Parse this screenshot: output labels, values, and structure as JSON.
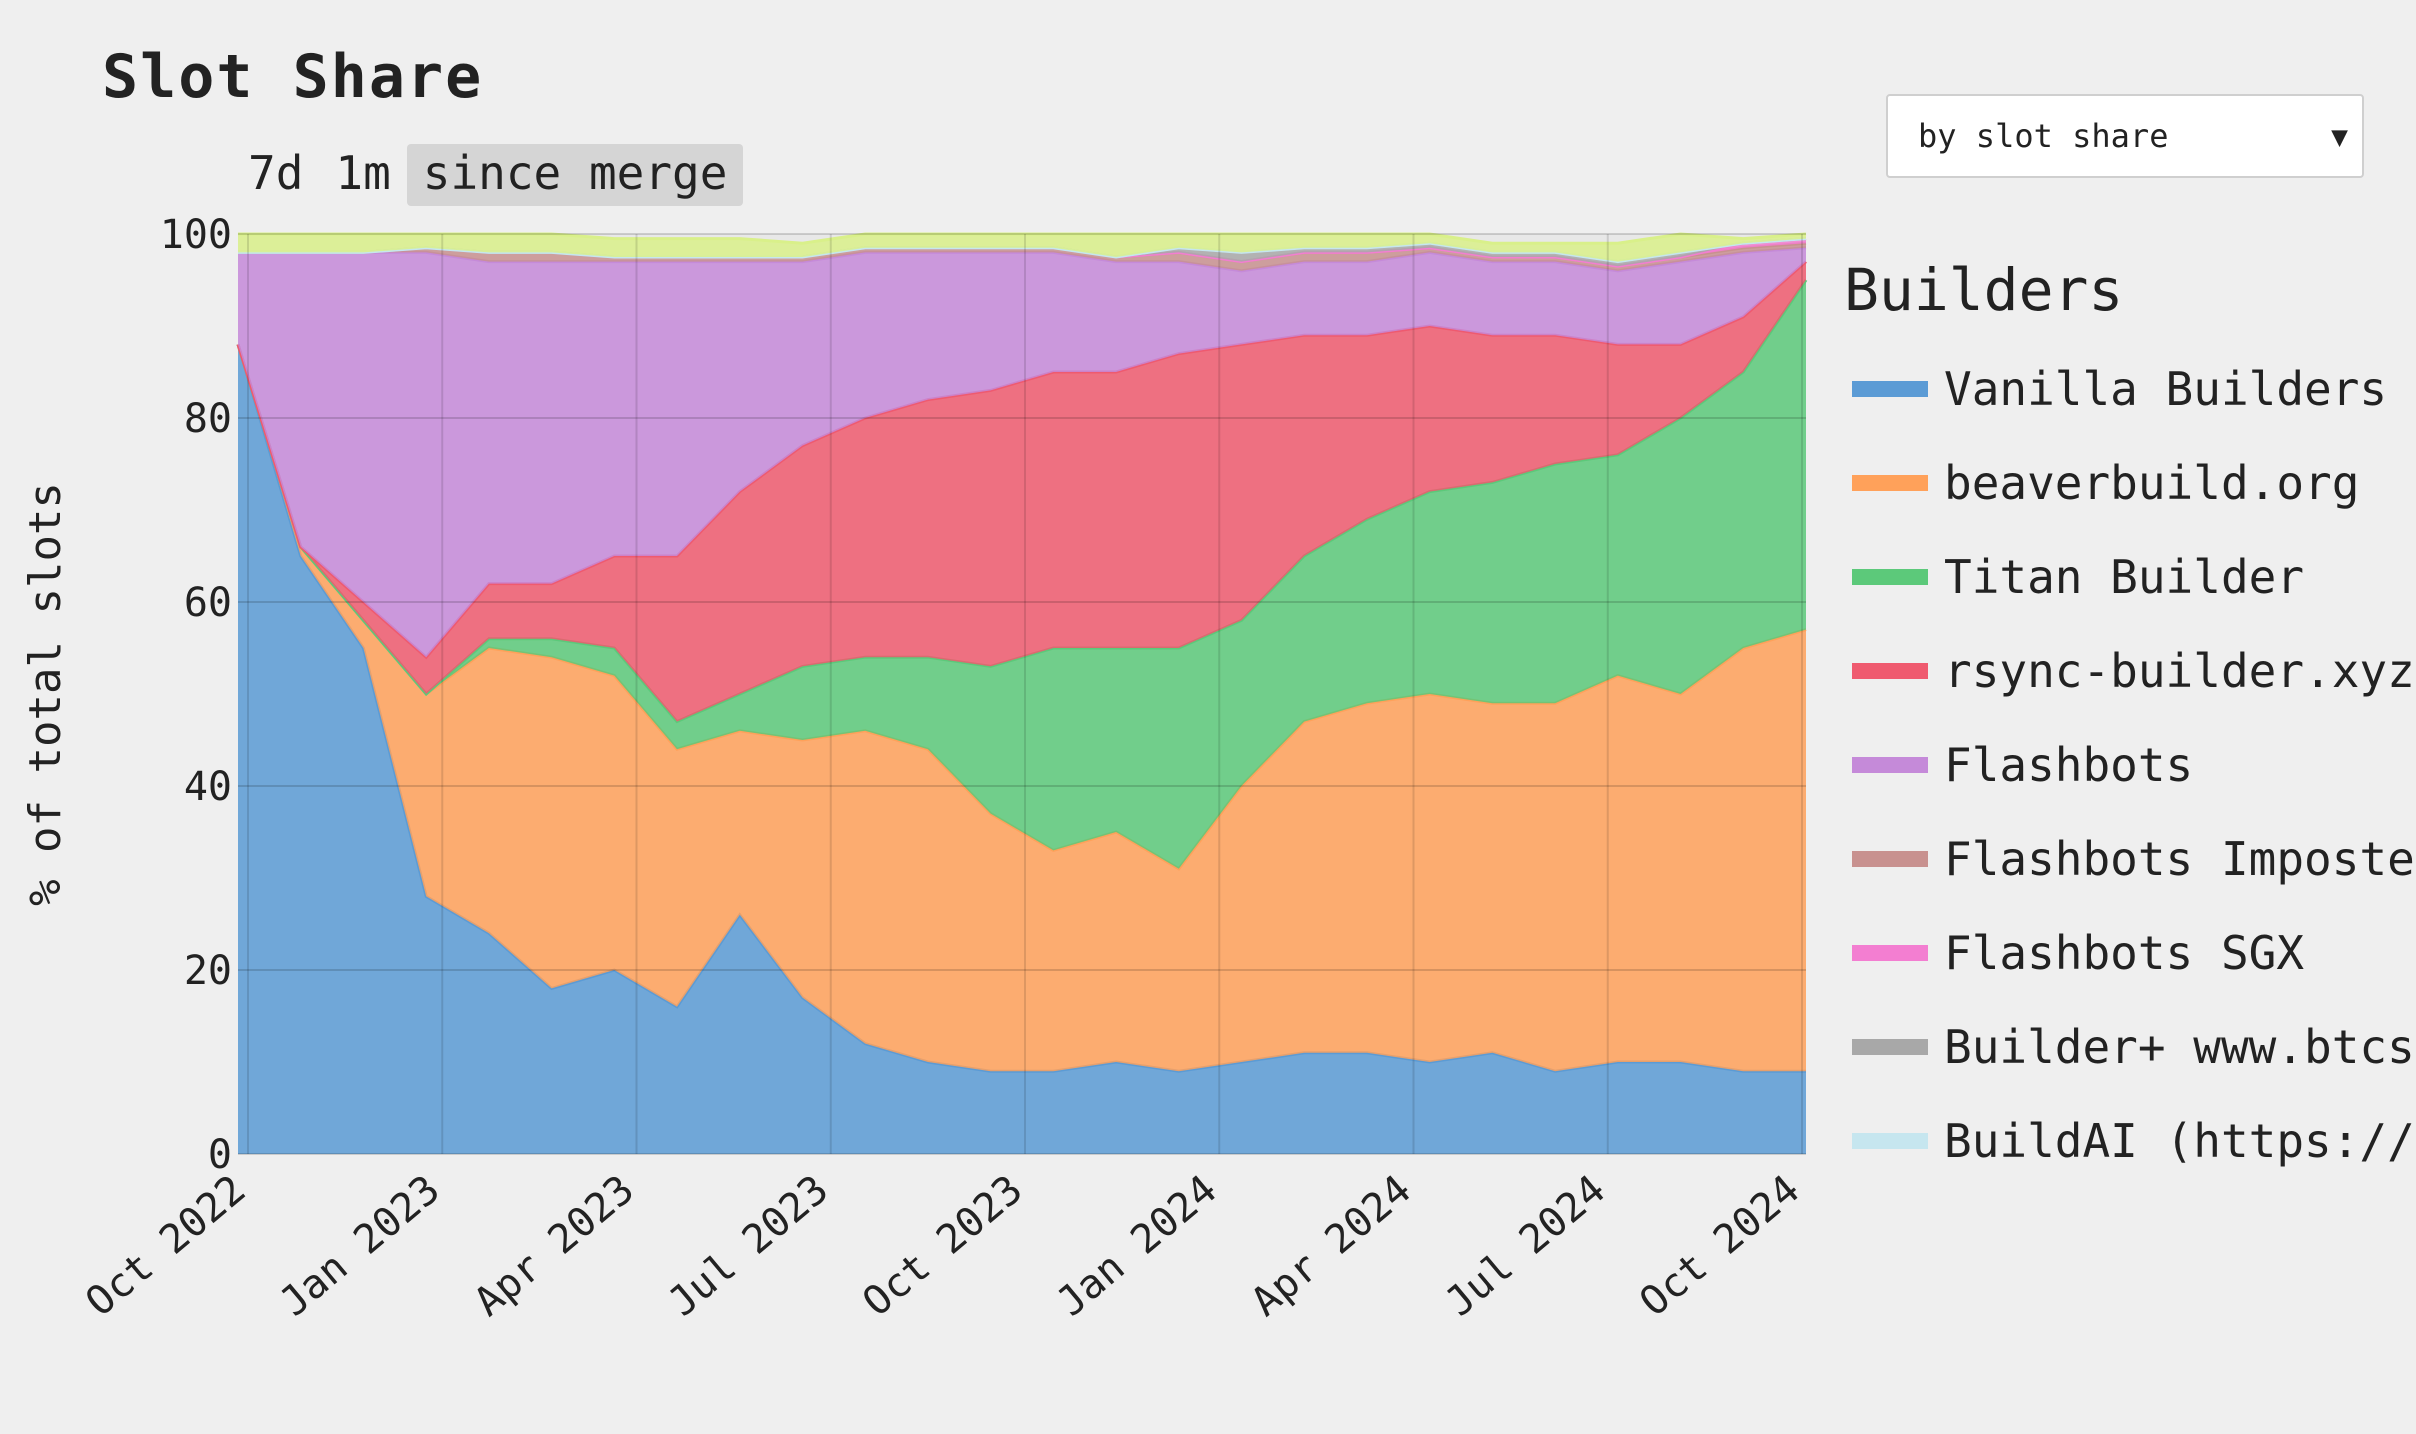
{
  "title": "Slot Share",
  "range_tabs": [
    {
      "label": "7d",
      "active": false
    },
    {
      "label": "1m",
      "active": false
    },
    {
      "label": "since merge",
      "active": true
    }
  ],
  "sort_select": {
    "value": "by slot share"
  },
  "legend": {
    "title": "Builders",
    "items": [
      {
        "label": "Vanilla Builders",
        "color": "#5b9bd5"
      },
      {
        "label": "beaverbuild.org",
        "color": "#ffa15a"
      },
      {
        "label": "Titan Builder",
        "color": "#5cc97a"
      },
      {
        "label": "rsync-builder.xyz",
        "color": "#ef5a6f"
      },
      {
        "label": "Flashbots",
        "color": "#c58ad9"
      },
      {
        "label": "Flashbots Imposte",
        "color": "#c8918f"
      },
      {
        "label": "Flashbots SGX",
        "color": "#f37ed1"
      },
      {
        "label": "Builder+ www.btcs",
        "color": "#a8a8a8"
      },
      {
        "label": "BuildAI (https://",
        "color": "#c6e6ef"
      }
    ]
  },
  "chart_data": {
    "type": "area",
    "title": "Slot Share",
    "ylabel": "% of total slots",
    "xlabel": "",
    "ylim": [
      0,
      100
    ],
    "yticks": [
      0,
      20,
      40,
      60,
      80,
      100
    ],
    "xticks": [
      "Oct 2022",
      "Jan 2023",
      "Apr 2023",
      "Jul 2023",
      "Oct 2023",
      "Jan 2024",
      "Apr 2024",
      "Jul 2024",
      "Oct 2024"
    ],
    "x": [
      "Sep 2022",
      "Oct 2022",
      "Nov 2022",
      "Dec 2022",
      "Jan 2023",
      "Feb 2023",
      "Mar 2023",
      "Apr 2023",
      "May 2023",
      "Jun 2023",
      "Jul 2023",
      "Aug 2023",
      "Sep 2023",
      "Oct 2023",
      "Nov 2023",
      "Dec 2023",
      "Jan 2024",
      "Feb 2024",
      "Mar 2024",
      "Apr 2024",
      "May 2024",
      "Jun 2024",
      "Jul 2024",
      "Aug 2024",
      "Sep 2024",
      "Oct 2024"
    ],
    "stacked": true,
    "grid": true,
    "legend_position": "right",
    "series": [
      {
        "name": "Vanilla Builders",
        "color": "#5b9bd5",
        "values": [
          88,
          65,
          55,
          28,
          24,
          18,
          20,
          16,
          26,
          17,
          12,
          10,
          9,
          9,
          10,
          9,
          10,
          11,
          11,
          10,
          11,
          9,
          10,
          10,
          9,
          9
        ]
      },
      {
        "name": "beaverbuild.org",
        "color": "#ffa15a",
        "values": [
          0,
          1,
          3,
          22,
          31,
          36,
          32,
          28,
          20,
          28,
          34,
          34,
          28,
          24,
          25,
          22,
          30,
          36,
          38,
          40,
          38,
          40,
          42,
          40,
          46,
          48
        ]
      },
      {
        "name": "Titan Builder",
        "color": "#5cc97a",
        "values": [
          0,
          0,
          0,
          0,
          1,
          2,
          3,
          3,
          4,
          8,
          8,
          10,
          16,
          22,
          20,
          24,
          18,
          18,
          20,
          22,
          24,
          26,
          24,
          30,
          30,
          38
        ]
      },
      {
        "name": "rsync-builder.xyz",
        "color": "#ef5a6f",
        "values": [
          0,
          0,
          2,
          4,
          6,
          6,
          10,
          18,
          22,
          24,
          26,
          28,
          30,
          30,
          30,
          32,
          30,
          24,
          20,
          18,
          16,
          14,
          12,
          8,
          6,
          2
        ]
      },
      {
        "name": "Flashbots",
        "color": "#c58ad9",
        "values": [
          10,
          32,
          38,
          44,
          35,
          35,
          32,
          32,
          25,
          20,
          18,
          16,
          15,
          13,
          12,
          10,
          8,
          8,
          8,
          8,
          8,
          8,
          8,
          9,
          7,
          1.5
        ]
      },
      {
        "name": "Flashbots Imposte",
        "color": "#c8918f",
        "values": [
          0,
          0,
          0,
          0.5,
          1,
          1,
          0.5,
          0.5,
          0.5,
          0.5,
          0.5,
          0.5,
          0.5,
          0.5,
          0.5,
          1,
          1,
          1,
          1,
          0.5,
          0.5,
          0.5,
          0.5,
          0.5,
          0.5,
          0.5
        ]
      },
      {
        "name": "Flashbots SGX",
        "color": "#f37ed1",
        "values": [
          0,
          0,
          0,
          0,
          0,
          0,
          0,
          0,
          0,
          0,
          0,
          0,
          0,
          0,
          0,
          0,
          0,
          0,
          0,
          0,
          0,
          0,
          0,
          0,
          0.5,
          0.5
        ]
      },
      {
        "name": "Builder+ www.btcs",
        "color": "#a8a8a8",
        "values": [
          0,
          0,
          0,
          0,
          0,
          0,
          0,
          0,
          0,
          0,
          0,
          0,
          0,
          0,
          0,
          0.5,
          1,
          0.5,
          0.5,
          0.5,
          0.5,
          0.5,
          0.5,
          0.5,
          0,
          0
        ]
      },
      {
        "name": "BuildAI (https://",
        "color": "#c6e6ef",
        "values": [
          0,
          0,
          0,
          0,
          0,
          0,
          0,
          0,
          0,
          0,
          0,
          0,
          0,
          0,
          0,
          0,
          0,
          0,
          0,
          0,
          0,
          0,
          0,
          0,
          0,
          0
        ]
      },
      {
        "name": "",
        "color": "#d9f08a",
        "values": [
          2,
          2,
          2,
          1.5,
          2,
          2,
          2,
          2,
          2,
          1.5,
          1.5,
          1.5,
          1.5,
          1.5,
          2.5,
          1.5,
          2,
          1.5,
          1.5,
          1,
          1,
          1,
          2,
          2,
          0.5,
          0.5
        ]
      }
    ]
  }
}
